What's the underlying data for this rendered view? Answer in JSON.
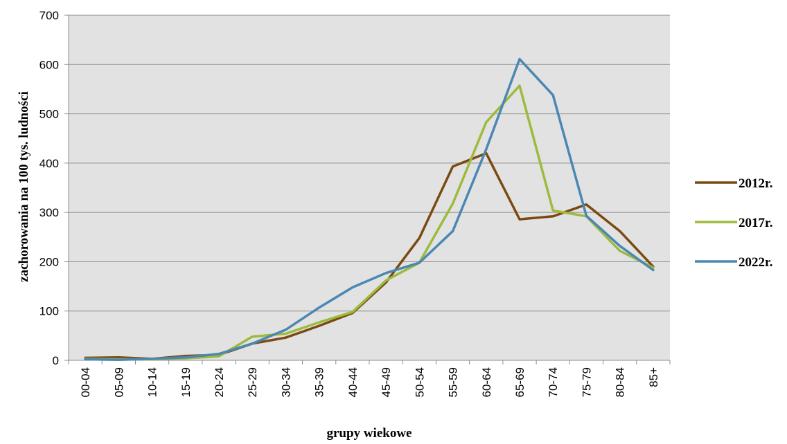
{
  "chart_data": {
    "type": "line",
    "title": "",
    "xlabel": "grupy wiekowe",
    "ylabel": "zachorowania na 100 tys. ludności",
    "ylim": [
      0,
      700
    ],
    "yticks": [
      0,
      100,
      200,
      300,
      400,
      500,
      600,
      700
    ],
    "categories": [
      "00-04",
      "05-09",
      "10-14",
      "15-19",
      "20-24",
      "25-29",
      "30-34",
      "35-39",
      "40-44",
      "45-49",
      "50-54",
      "55-59",
      "60-64",
      "65-69",
      "70-74",
      "75-79",
      "80-84",
      "85+"
    ],
    "grid": true,
    "legend_position": "right",
    "plot_background": "#e2e2e2",
    "series": [
      {
        "name": "2012r.",
        "color": "#7b4a12",
        "values": [
          5,
          6,
          3,
          9,
          11,
          34,
          46,
          70,
          96,
          158,
          248,
          393,
          420,
          286,
          292,
          316,
          262,
          190
        ]
      },
      {
        "name": "2017r.",
        "color": "#9cbb3c",
        "values": [
          3,
          2,
          2,
          4,
          8,
          48,
          54,
          77,
          98,
          162,
          198,
          318,
          483,
          557,
          304,
          292,
          222,
          188
        ]
      },
      {
        "name": "2022r.",
        "color": "#4a88b3",
        "values": [
          2,
          1,
          3,
          6,
          13,
          34,
          62,
          107,
          148,
          177,
          198,
          262,
          428,
          611,
          538,
          293,
          232,
          183
        ]
      }
    ]
  }
}
